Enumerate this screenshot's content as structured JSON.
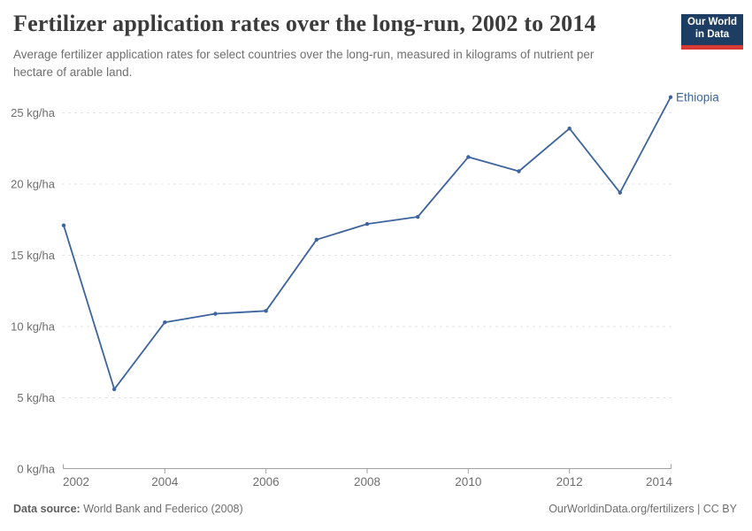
{
  "header": {
    "title": "Fertilizer application rates over the long-run, 2002 to 2014",
    "subtitle": "Average fertilizer application rates for select countries over the long-run, measured in kilograms of nutrient per\nhectare of arable land.",
    "logo": {
      "line1": "Our World",
      "line2": "in Data"
    }
  },
  "chart_data": {
    "type": "line",
    "title": "Fertilizer application rates over the long-run, 2002 to 2014",
    "x": [
      2002,
      2003,
      2004,
      2005,
      2006,
      2007,
      2008,
      2009,
      2010,
      2011,
      2012,
      2013,
      2014
    ],
    "series": [
      {
        "name": "Ethiopia",
        "color": "#3d649e",
        "values": [
          17.1,
          5.6,
          10.3,
          10.9,
          11.1,
          16.1,
          17.2,
          17.7,
          21.9,
          20.9,
          23.9,
          19.4,
          26.1
        ]
      }
    ],
    "x_ticks": [
      2002,
      2004,
      2006,
      2008,
      2010,
      2012,
      2014
    ],
    "y_ticks": [
      0,
      5,
      10,
      15,
      20,
      25
    ],
    "y_unit": " kg/ha",
    "ylim": [
      0,
      26.5
    ],
    "xlabel": "",
    "ylabel": "",
    "grid": "horizontal-dashed",
    "legend": "line-end-label"
  },
  "footer": {
    "source_label": "Data source:",
    "source_text": "World Bank and Federico (2008)",
    "credit": "OurWorldinData.org/fertilizers | CC BY"
  },
  "colors": {
    "line": "#3d649e",
    "grid": "#e3e3e3",
    "axis": "#a1a1a1",
    "tick_label": "#6e6e6e",
    "title": "#3b3b3b",
    "subtitle": "#6f6f6f",
    "logo_bg": "#1d3d63",
    "logo_stripe": "#d73a34"
  }
}
